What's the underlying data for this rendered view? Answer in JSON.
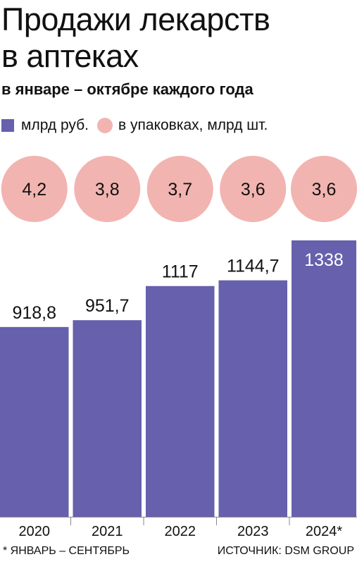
{
  "title_line1": "Продажи лекарств",
  "title_line2": "в аптеках",
  "subtitle": "в январе – октябре каждого года",
  "legend": {
    "bars": "млрд руб.",
    "circles": "в упаковках, млрд шт."
  },
  "footnote": "* ЯНВАРЬ – СЕНТЯБРЬ",
  "source": "ИСТОЧНИК: DSM GROUP",
  "colors": {
    "bar": "#6660ad",
    "circle": "#f2b4b0",
    "axis": "#888888"
  },
  "chart_data": {
    "type": "bar",
    "categories": [
      "2020",
      "2021",
      "2022",
      "2023",
      "2024*"
    ],
    "series": [
      {
        "name": "млрд руб.",
        "values": [
          918.8,
          951.7,
          1117,
          1144.7,
          1338
        ],
        "labels": [
          "918,8",
          "951,7",
          "1117",
          "1144,7",
          "1338"
        ]
      },
      {
        "name": "в упаковках, млрд шт.",
        "values": [
          4.2,
          3.8,
          3.7,
          3.6,
          3.6
        ],
        "labels": [
          "4,2",
          "3,8",
          "3,7",
          "3,6",
          "3,6"
        ]
      }
    ]
  }
}
